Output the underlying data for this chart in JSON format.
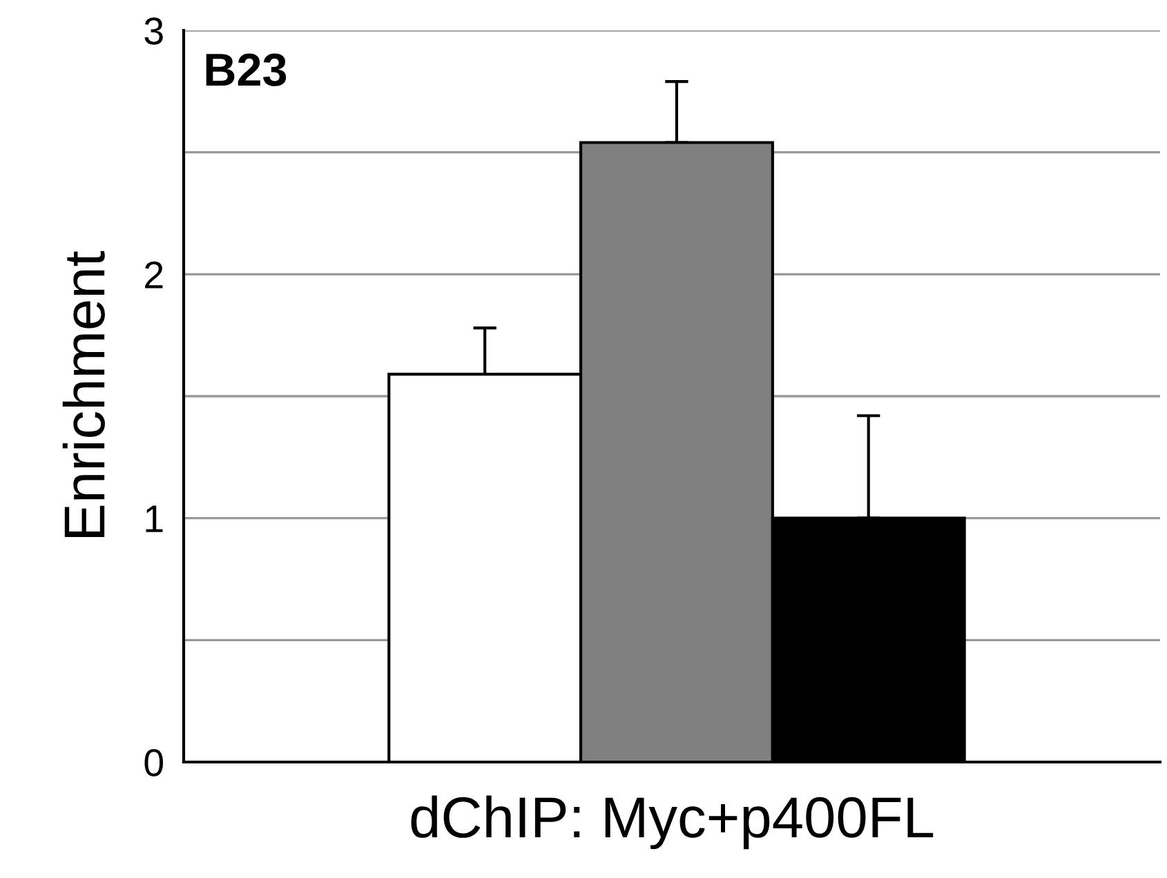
{
  "chart_data": {
    "type": "bar",
    "xlabel": "dChIP: Myc+p400FL",
    "ylabel": "Enrichment",
    "annotations": [
      "B23"
    ],
    "categories": [
      null,
      null,
      null
    ],
    "values": [
      1.59,
      2.54,
      1.0
    ],
    "colors": [
      "#ffffff",
      "#808080",
      "#000000"
    ],
    "errors": [
      [
        1.59,
        1.78
      ],
      [
        2.54,
        2.79
      ],
      [
        1.0,
        1.42
      ]
    ],
    "ylim": [
      0,
      3
    ],
    "yticks": [
      0,
      {
        "value": 0.5,
        "label": null
      },
      1,
      {
        "value": 1.5,
        "label": null
      },
      2,
      {
        "value": 2.5,
        "label": null
      },
      3
    ],
    "grid": "y"
  }
}
